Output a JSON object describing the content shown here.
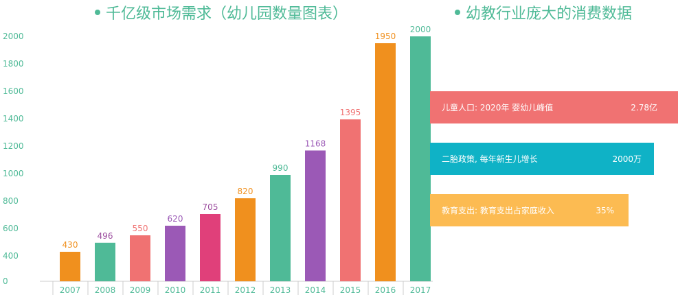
{
  "titles": {
    "left": "千亿级市场需求（幼儿园数量图表）",
    "right": "幼教行业庞大的消费数据"
  },
  "chart_data": {
    "type": "bar",
    "categories": [
      "2007",
      "2008",
      "2009",
      "2010",
      "2011",
      "2012",
      "2013",
      "2014",
      "2015",
      "2016",
      "2017"
    ],
    "values": [
      430,
      496,
      550,
      620,
      705,
      820,
      990,
      1168,
      1395,
      1950,
      2000
    ],
    "bar_colors": [
      "#f0901e",
      "#4fba97",
      "#f07272",
      "#9b59b6",
      "#e0407a",
      "#f0901e",
      "#4fba97",
      "#9b59b6",
      "#f07272",
      "#f0901e",
      "#4fba97"
    ],
    "label_colors": [
      "#f0901e",
      "#9b4c9e",
      "#f07272",
      "#9b59b6",
      "#9b4c9e",
      "#f0901e",
      "#4fba97",
      "#9b59b6",
      "#f07272",
      "#f0901e",
      "#4fba97"
    ],
    "yticks": [
      0,
      400,
      600,
      800,
      1000,
      1200,
      1400,
      1600,
      1800,
      2000
    ],
    "ylim": [
      0,
      2000
    ],
    "grid": false,
    "title": "",
    "xlabel": "",
    "ylabel": ""
  },
  "stats": [
    {
      "label": "儿童人口: 2020年 婴幼儿峰值",
      "value": "2.78亿",
      "color": "#f07272"
    },
    {
      "label": "二胎政策, 每年新生儿增长",
      "value": "2000万",
      "color": "#0fb2c6"
    },
    {
      "label": "教育支出: 教育支出占家庭收入",
      "value": "35%",
      "color": "#fcbb52"
    }
  ],
  "colors": {
    "accent": "#4fba97",
    "axis_text": "#4fba97",
    "axis_line": "#cccccc"
  }
}
